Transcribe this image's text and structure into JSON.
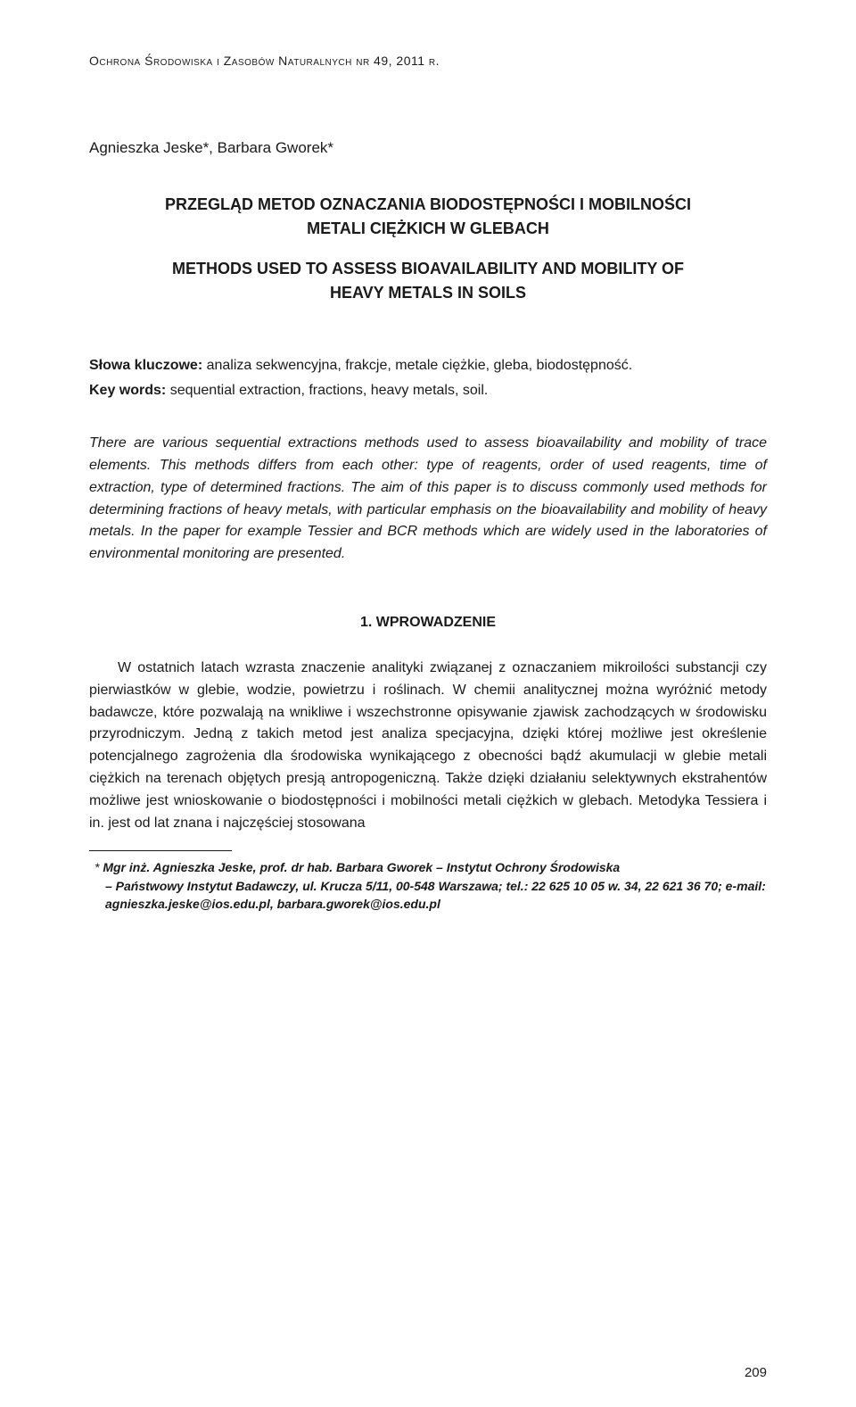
{
  "journal_header": "Ochrona Środowiska i Zasobów Naturalnych  nr 49, 2011 r.",
  "authors": "Agnieszka Jeske*, Barbara Gworek*",
  "title_pl_line1": "Przegląd metod oznaczania biodostępności i mobilności",
  "title_pl_line2": "metali ciężkich w glebach",
  "title_en_line1": "Methods used to assess bioavailability and mobility of",
  "title_en_line2": "heavy metals in soils",
  "keywords_pl_label": "Słowa kluczowe:",
  "keywords_pl": " analiza sekwencyjna, frakcje, metale ciężkie, gleba, biodostępność.",
  "keywords_en_label": "Key words:",
  "keywords_en": " sequential extraction, fractions, heavy metals, soil.",
  "abstract": "There are various sequential extractions methods used to assess bioavailability and mobility of trace elements. This methods differs from each other: type of reagents, order of used reagents, time of extraction, type of determined fractions. The aim of this paper is to discuss commonly used methods for determining fractions of heavy metals, with particular emphasis on the bioavailability and mobility of heavy metals. In the paper for example Tessier and BCR methods which are widely used in the laboratories of environmental monitoring are presented.",
  "section_heading": "1. WPROWADZENIE",
  "body_text": "W ostatnich latach wzrasta znaczenie analityki związanej z oznaczaniem mikroilości substancji czy pierwiastków w glebie, wodzie, powietrzu i roślinach. W chemii analitycznej można wyróżnić metody badawcze, które pozwalają na wnikliwe i wszechstronne opisywanie zjawisk zachodzących w środowisku przyrodniczym. Jedną z takich metod jest analiza specjacyjna, dzięki której możliwe jest określenie potencjalnego zagrożenia dla środowiska wynikającego z obecności bądź akumulacji w glebie metali ciężkich na terenach objętych presją antropogeniczną. Także dzięki działaniu selektywnych ekstrahentów możliwe jest wnioskowanie o biodostępności i mobilności metali ciężkich w glebach. Metodyka Tessiera i in. jest od lat znana i najczęściej stosowana",
  "footnote_marker": "* ",
  "footnote_line1": "Mgr inż. Agnieszka Jeske, prof. dr hab. Barbara Gworek – Instytut Ochrony Środowiska",
  "footnote_line2": "– Państwowy Instytut Badawczy, ul. Krucza 5/11, 00-548 Warszawa; tel.: 22 625 10 05 w. 34, 22 621 36 70; e-mail: agnieszka.jeske@ios.edu.pl, barbara.gworek@ios.edu.pl",
  "page_number": "209"
}
